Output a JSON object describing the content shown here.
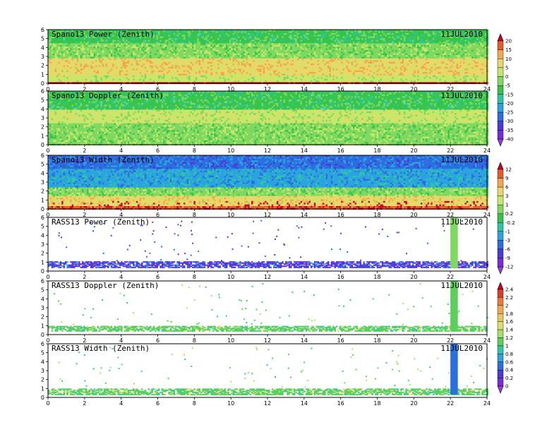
{
  "figure": {
    "date": "11JUL2010"
  },
  "chart_data": [
    {
      "type": "heatmap",
      "title": "Spano13 Power (Zenith)",
      "date_label": "11JUL2010",
      "xlim": [
        0,
        24
      ],
      "ylim": [
        0,
        6
      ],
      "x_ticks": [
        0,
        2,
        4,
        6,
        8,
        10,
        12,
        14,
        16,
        18,
        20,
        22,
        24
      ],
      "y_ticks": [
        0,
        1,
        2,
        3,
        4,
        5,
        6
      ],
      "colorbar": "scale_a",
      "layers": [
        {
          "y0": 0.0,
          "y1": 0.3,
          "value": 20
        },
        {
          "y0": 0.3,
          "y1": 1.0,
          "value": 0
        },
        {
          "y0": 1.0,
          "y1": 2.8,
          "value": 5
        },
        {
          "y0": 2.8,
          "y1": 4.5,
          "value": -5
        },
        {
          "y0": 4.5,
          "y1": 6.0,
          "value": -15
        }
      ]
    },
    {
      "type": "heatmap",
      "title": "Spano13 Doppler (Zenith)",
      "date_label": "11JUL2010",
      "xlim": [
        0,
        24
      ],
      "ylim": [
        0,
        6
      ],
      "x_ticks": [
        0,
        2,
        4,
        6,
        8,
        10,
        12,
        14,
        16,
        18,
        20,
        22,
        24
      ],
      "y_ticks": [
        0,
        1,
        2,
        3,
        4,
        5,
        6
      ],
      "colorbar": "scale_a",
      "layers": [
        {
          "y0": 0.0,
          "y1": 1.5,
          "value": -5
        },
        {
          "y0": 1.5,
          "y1": 2.5,
          "value": -5
        },
        {
          "y0": 2.5,
          "y1": 4.0,
          "value": 0
        },
        {
          "y0": 4.0,
          "y1": 6.0,
          "value": -10
        }
      ]
    },
    {
      "type": "heatmap",
      "title": "Spano13 Width (Zenith)",
      "date_label": "11JUL2010",
      "xlim": [
        0,
        24
      ],
      "ylim": [
        0,
        6
      ],
      "x_ticks": [
        0,
        2,
        4,
        6,
        8,
        10,
        12,
        14,
        16,
        18,
        20,
        22,
        24
      ],
      "y_ticks": [
        0,
        1,
        2,
        3,
        4,
        5,
        6
      ],
      "colorbar": "scale_b",
      "layers": [
        {
          "y0": 0.0,
          "y1": 0.5,
          "value": 9
        },
        {
          "y0": 0.5,
          "y1": 1.5,
          "value": 3
        },
        {
          "y0": 1.5,
          "y1": 2.5,
          "value": 0.2
        },
        {
          "y0": 2.5,
          "y1": 4.5,
          "value": -3
        },
        {
          "y0": 4.5,
          "y1": 6.0,
          "value": -6
        }
      ]
    },
    {
      "type": "heatmap",
      "title": "RASS13 Power (Zenith)",
      "date_label": "11JUL2010",
      "xlim": [
        0,
        24
      ],
      "ylim": [
        0,
        6
      ],
      "x_ticks": [
        0,
        2,
        4,
        6,
        8,
        10,
        12,
        14,
        16,
        18,
        20,
        22,
        24
      ],
      "y_ticks": [
        0,
        1,
        2,
        3,
        4,
        5,
        6
      ],
      "colorbar": "scale_b",
      "band": {
        "y0": 0.5,
        "y1": 1.2,
        "value": -9
      },
      "column": {
        "x0": 22.0,
        "x1": 22.4,
        "y0": 0.5,
        "y1": 6.0,
        "value": 0.2
      }
    },
    {
      "type": "heatmap",
      "title": "RASS13 Doppler (Zenith)",
      "date_label": "11JUL2010",
      "xlim": [
        0,
        24
      ],
      "ylim": [
        0,
        6
      ],
      "x_ticks": [
        0,
        2,
        4,
        6,
        8,
        10,
        12,
        14,
        16,
        18,
        20,
        22,
        24
      ],
      "y_ticks": [
        0,
        1,
        2,
        3,
        4,
        5,
        6
      ],
      "colorbar": "scale_c",
      "band": {
        "y0": 0.5,
        "y1": 1.0,
        "value": 1.0
      },
      "column": {
        "x0": 22.0,
        "x1": 22.4,
        "y0": 0.5,
        "y1": 6.0,
        "value": 1.0
      }
    },
    {
      "type": "heatmap",
      "title": "RASS13 Width (Zenith)",
      "date_label": "11JUL2010",
      "xlim": [
        0,
        24
      ],
      "ylim": [
        0,
        6
      ],
      "x_ticks": [
        0,
        2,
        4,
        6,
        8,
        10,
        12,
        14,
        16,
        18,
        20,
        22,
        24
      ],
      "y_ticks": [
        0,
        1,
        2,
        3,
        4,
        5,
        6
      ],
      "colorbar": "scale_c",
      "band": {
        "y0": 0.4,
        "y1": 1.1,
        "value": 1.0
      },
      "column": {
        "x0": 22.0,
        "x1": 22.4,
        "y0": 0.5,
        "y1": 6.0,
        "value": 0.4
      }
    }
  ],
  "colorbars": {
    "scale_a": {
      "labels": [
        "20",
        "15",
        "10",
        "5",
        "0",
        "-5",
        "-15",
        "-20",
        "-25",
        "-30",
        "-35",
        "-40"
      ],
      "colors": [
        "#c8002a",
        "#e85a2a",
        "#f3a64a",
        "#e8d86a",
        "#c6e86a",
        "#7fd860",
        "#36c44a",
        "#2cc7a6",
        "#2aa3e0",
        "#2a6ee0",
        "#4a3ad8",
        "#7a2ad8",
        "#9a3ae8"
      ]
    },
    "scale_b": {
      "labels": [
        "12",
        "9",
        "6",
        "3",
        "1",
        "0.2",
        "-0.2",
        "-1",
        "-3",
        "-6",
        "-9",
        "-12"
      ],
      "colors": [
        "#c8002a",
        "#e85a2a",
        "#f3a64a",
        "#e8d86a",
        "#c6e86a",
        "#7fd860",
        "#36c44a",
        "#2cc7a6",
        "#2aa3e0",
        "#2a6ee0",
        "#4a3ad8",
        "#7a2ad8",
        "#9a3ae8"
      ]
    },
    "scale_c": {
      "labels": [
        "2.4",
        "2.2",
        "2",
        "1.8",
        "1.6",
        "1.4",
        "1.2",
        "1",
        "0.8",
        "0.6",
        "0.4",
        "0.2",
        "0"
      ],
      "colors": [
        "#c8002a",
        "#e23a2a",
        "#ef7a3a",
        "#f3a64a",
        "#e8c85a",
        "#d8e06a",
        "#a6e06a",
        "#5ad05a",
        "#2cc7a6",
        "#2aa3e0",
        "#2a6ee0",
        "#4a3ad8",
        "#7a2ad8",
        "#9a3ae8"
      ]
    }
  }
}
